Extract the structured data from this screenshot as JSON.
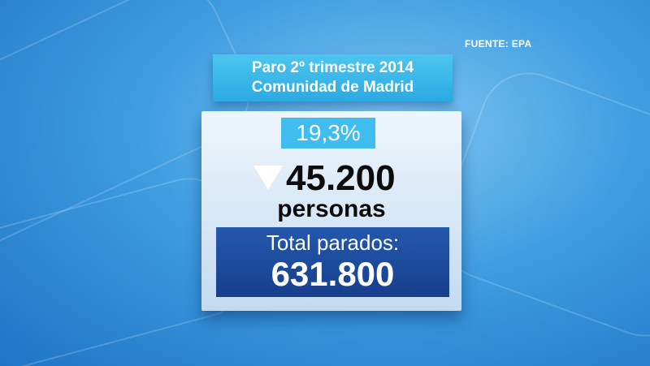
{
  "source": "FUENTE: EPA",
  "title": [
    "Paro 2º trimestre 2014",
    "Comunidad de Madrid"
  ],
  "rate": "19,3%",
  "change": "45.200",
  "unit": "personas",
  "total": {
    "label": "Total parados:",
    "value": "631.800"
  }
}
